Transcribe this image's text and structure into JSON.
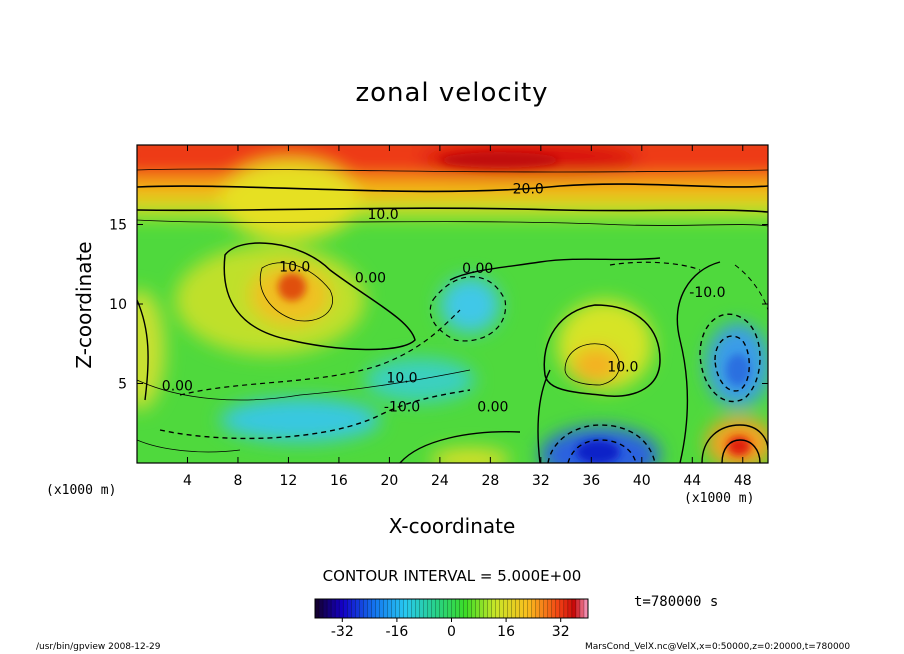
{
  "chart_data": {
    "type": "heatmap",
    "title": "zonal velocity",
    "xlabel": "X-coordinate",
    "ylabel": "Z-coordinate",
    "x_unit": "(x1000 m)",
    "xlim": [
      0,
      50
    ],
    "ylim": [
      0,
      20
    ],
    "x_ticks": [
      "4",
      "8",
      "12",
      "16",
      "20",
      "24",
      "28",
      "32",
      "36",
      "40",
      "44",
      "48"
    ],
    "y_ticks": [
      "5",
      "10",
      "15"
    ],
    "contour_interval_text": "CONTOUR INTERVAL = 5.000E+00",
    "contour_labels": [
      {
        "text": "20.0",
        "x": 31,
        "y": 17.2
      },
      {
        "text": "10.0",
        "x": 19.5,
        "y": 15.6
      },
      {
        "text": "10.0",
        "x": 12.5,
        "y": 12.3
      },
      {
        "text": "0.00",
        "x": 18.5,
        "y": 11.6
      },
      {
        "text": "0.00",
        "x": 27,
        "y": 12.2
      },
      {
        "text": "-10.0",
        "x": 45.2,
        "y": 10.7
      },
      {
        "text": "10.0",
        "x": 38.5,
        "y": 6.0
      },
      {
        "text": "0.00",
        "x": 3.2,
        "y": 4.8
      },
      {
        "text": "10.0",
        "x": 21.0,
        "y": 5.3
      },
      {
        "text": "-10.0",
        "x": 21.0,
        "y": 3.5
      },
      {
        "text": "0.00",
        "x": 28.2,
        "y": 3.5
      }
    ],
    "colorbar": {
      "min": -40,
      "max": 40,
      "ticks": [
        "-32",
        "-16",
        "0",
        "16",
        "32"
      ]
    },
    "time_text": "t=780000 s"
  },
  "footer": {
    "left": "/usr/bin/gpview 2008-12-29",
    "right": "MarsCond_VelX.nc@VelX,x=0:50000,z=0:20000,t=780000"
  }
}
